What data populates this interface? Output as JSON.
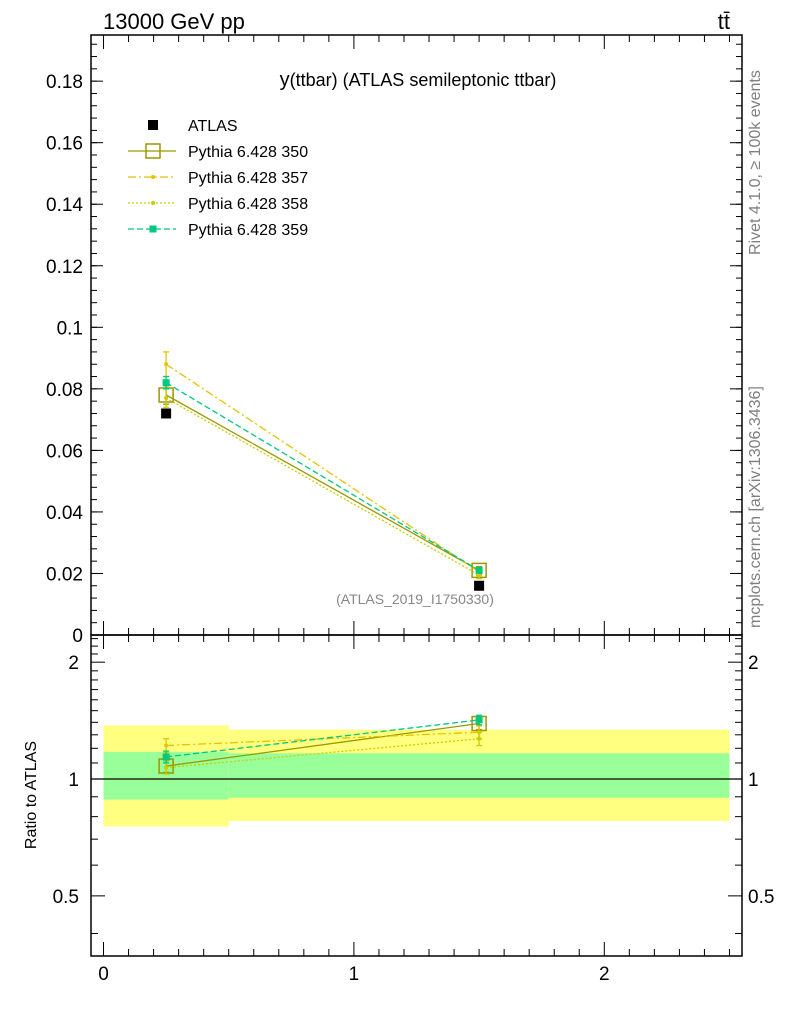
{
  "header": {
    "energy": "13000 GeV pp",
    "process": "tt̄"
  },
  "side_labels": {
    "rivet": "Rivet 4.1.0, ≥ 100k events",
    "source": "mcplots.cern.ch [arXiv:1306.3436]"
  },
  "chart_data": {
    "type": "line",
    "title": "y(ttbar) (ATLAS semileptonic ttbar)",
    "title_main": "y",
    "title_rest": "(ttbar) (ATLAS semileptonic ttbar)",
    "analysis_id": "(ATLAS_2019_I1750330)",
    "main_panel": {
      "ylim": [
        0,
        0.195
      ],
      "yticks": [
        0,
        0.02,
        0.04,
        0.06,
        0.08,
        0.1,
        0.12,
        0.14,
        0.16,
        0.18
      ],
      "ytick_labels": [
        "0",
        "0.02",
        "0.04",
        "0.06",
        "0.08",
        "0.1",
        "0.12",
        "0.14",
        "0.16",
        "0.18"
      ]
    },
    "ratio_panel": {
      "ylabel": "Ratio to ATLAS",
      "ylim": [
        0.35,
        2.35
      ],
      "ytick_labels": [
        "0.5",
        "1",
        "2"
      ],
      "yticks": [
        0.5,
        1,
        2
      ],
      "bands": [
        {
          "xmin": 0,
          "xmax": 0.5,
          "green": [
            0.885,
            1.175
          ],
          "yellow": [
            0.755,
            1.375
          ]
        },
        {
          "xmin": 0.5,
          "xmax": 2.5,
          "green": [
            0.895,
            1.165
          ],
          "yellow": [
            0.78,
            1.34
          ]
        }
      ]
    },
    "xlim": [
      -0.05,
      2.55
    ],
    "xticks": [
      0,
      1,
      2
    ],
    "xtick_labels": [
      "0",
      "1",
      "2"
    ],
    "data": {
      "name": "ATLAS",
      "x": [
        0.25,
        1.5
      ],
      "y": [
        0.072,
        0.016
      ]
    },
    "series": [
      {
        "name": "Pythia 6.428 350",
        "color": "#999900",
        "style": "solid",
        "marker": "open-square",
        "x": [
          0.25,
          1.5
        ],
        "y": [
          0.078,
          0.021
        ],
        "err": [
          0.003,
          0.0012
        ],
        "ratio": [
          1.08,
          1.39
        ],
        "ratio_err": [
          0.04,
          0.05
        ]
      },
      {
        "name": "Pythia 6.428 357",
        "color": "#e6c200",
        "style": "dashdot",
        "marker": "dot",
        "x": [
          0.25,
          1.5
        ],
        "y": [
          0.088,
          0.0205
        ],
        "err": [
          0.004,
          0.0012
        ],
        "ratio": [
          1.22,
          1.32
        ],
        "ratio_err": [
          0.05,
          0.05
        ]
      },
      {
        "name": "Pythia 6.428 358",
        "color": "#cccc00",
        "style": "dotted",
        "marker": "dot",
        "x": [
          0.25,
          1.5
        ],
        "y": [
          0.077,
          0.0195
        ],
        "err": [
          0.003,
          0.0012
        ],
        "ratio": [
          1.07,
          1.27
        ],
        "ratio_err": [
          0.04,
          0.05
        ]
      },
      {
        "name": "Pythia 6.428 359",
        "color": "#00c87f",
        "style": "dashed",
        "marker": "filled-square",
        "x": [
          0.25,
          1.5
        ],
        "y": [
          0.082,
          0.021
        ],
        "err": [
          0.002,
          0.0008
        ],
        "ratio": [
          1.14,
          1.42
        ],
        "ratio_err": [
          0.04,
          0.04
        ]
      }
    ]
  }
}
